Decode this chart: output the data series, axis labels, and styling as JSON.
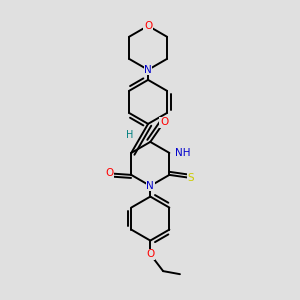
{
  "bg_color": "#e0e0e0",
  "bond_color": "#000000",
  "atom_colors": {
    "O": "#ff0000",
    "N": "#0000cc",
    "S": "#cccc00",
    "H_color": "#008080",
    "C": "#000000"
  },
  "lw": 1.4,
  "dbo": 0.018
}
